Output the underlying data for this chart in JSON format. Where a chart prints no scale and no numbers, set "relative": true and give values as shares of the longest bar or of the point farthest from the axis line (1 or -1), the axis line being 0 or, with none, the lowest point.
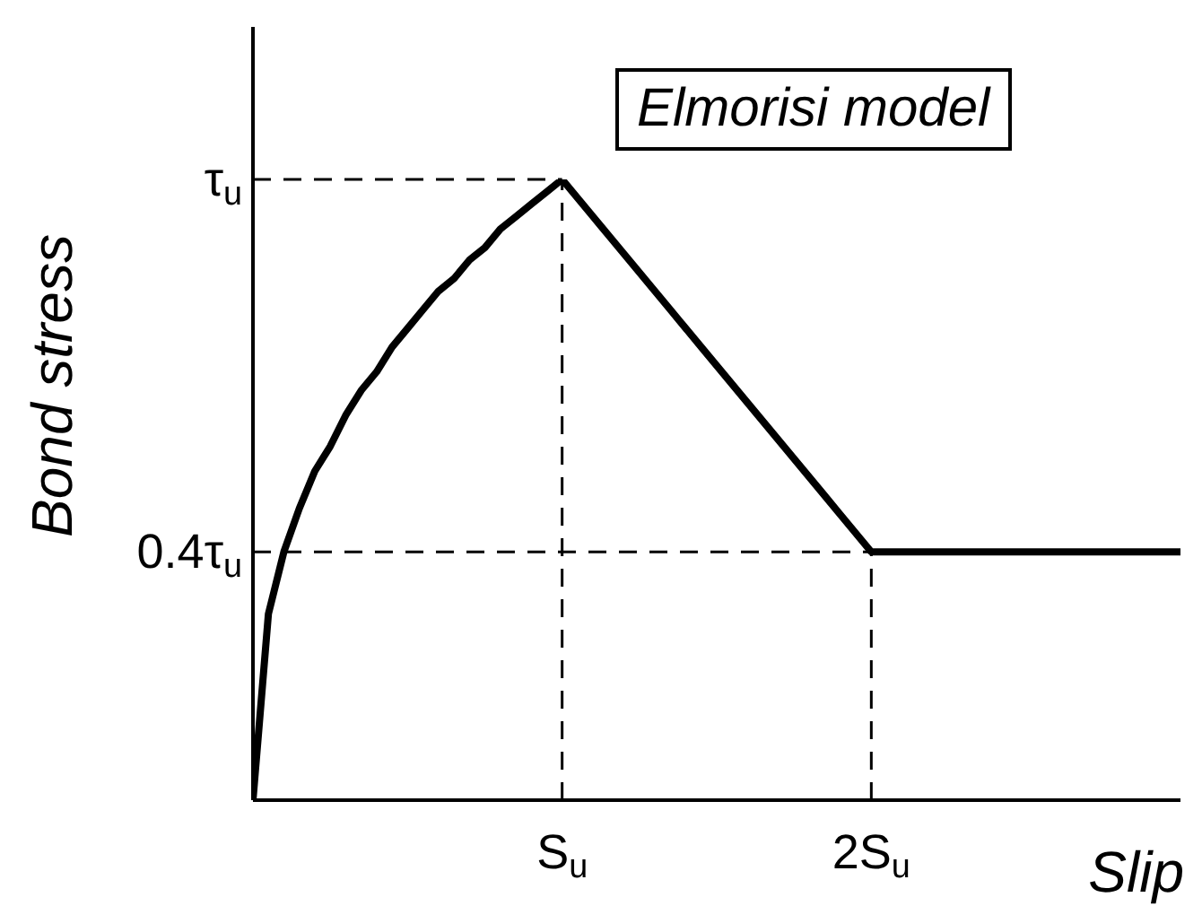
{
  "chart_data": {
    "type": "line",
    "xlabel": "Slip",
    "ylabel": "Bond stress",
    "annotations": [
      "Elmorisi model"
    ],
    "categories": [
      null,
      null,
      null,
      null,
      null,
      null,
      null,
      null,
      null,
      null,
      null,
      null,
      null,
      null,
      null,
      null,
      null,
      null,
      null,
      null,
      "S$_{u}$",
      null,
      null,
      null,
      null,
      null,
      null,
      null,
      null,
      null,
      null,
      null,
      null,
      null,
      null,
      null,
      null,
      null,
      null,
      null,
      "2S$_{u}$",
      null,
      null,
      null,
      null,
      null,
      null,
      null,
      null,
      null,
      null,
      null,
      null,
      null,
      null,
      null,
      null,
      null,
      null,
      null,
      null
    ],
    "series": [
      {
        "color": "#000000",
        "values": [
          0,
          0.3,
          0.4,
          0.47,
          0.53,
          0.57,
          0.62,
          0.66,
          0.69,
          0.73,
          0.76,
          0.79,
          0.82,
          0.84,
          0.87,
          0.89,
          0.92,
          0.94,
          0.96,
          0.98,
          1,
          0.97,
          0.94,
          0.91,
          0.88,
          0.85,
          0.82,
          0.79,
          0.76,
          0.73,
          0.7,
          0.67,
          0.64,
          0.61,
          0.58,
          0.55,
          0.52,
          0.49,
          0.46,
          0.43,
          0.4,
          0.4,
          0.4,
          0.4,
          0.4,
          0.4,
          0.4,
          0.4,
          0.4,
          0.4,
          0.4,
          0.4,
          0.4,
          0.4,
          0.4,
          0.4,
          0.4,
          0.4,
          0.4,
          0.4,
          0.4
        ]
      }
    ],
    "relative": true,
    "ref_lines": [
      {
        "axis": "y",
        "value": 1,
        "label": "τ$_{u}$",
        "color": "#000000",
        "line_style": "dashed"
      },
      {
        "axis": "y",
        "value": 0.4,
        "label": "0.4τ$_{u}$",
        "color": "#000000",
        "line_style": "dashed"
      },
      {
        "axis": "x",
        "value": "S$_{u}$",
        "color": "#000000",
        "line_style": "dashed"
      },
      {
        "axis": "x",
        "value": "2S$_{u}$",
        "color": "#000000",
        "line_style": "dashed"
      }
    ],
    "marker": "none",
    "line_style": "solid"
  }
}
